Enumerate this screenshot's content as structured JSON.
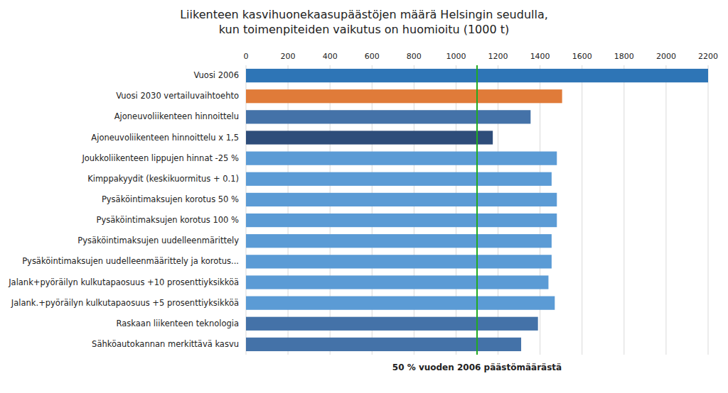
{
  "chart_data": {
    "type": "bar",
    "orientation": "horizontal",
    "title": "Liikenteen kasvihuonekaasupäästöjen määrä Helsingin seudulla,\nkun toimenpiteiden vaikutus on huomioitu (1000 t)",
    "categories": [
      "Vuosi 2006",
      "Vuosi 2030 vertailuvaihtoehto",
      "Ajoneuvoliikenteen hinnoittelu",
      "Ajoneuvoliikenteen hinnoittelu x 1,5",
      "Joukkoliikenteen lippujen hinnat -25 %",
      "Kimppakyydit (keskikuormitus + 0.1)",
      "Pysäköintimaksujen korotus 50 %",
      "Pysäköintimaksujen korotus 100 %",
      "Pysäköintimaksujen uudelleenmärittely",
      "Pysäköintimaksujen uudelleenmäärittely ja korotus...",
      "Jalank+pyöräilyn kulkutapaosuus +10 prosenttiyksikköä",
      "Jalank.+pyöräilyn kulkutapaosuus +5 prosenttiyksikköä",
      "Raskaan liikenteen teknologia",
      "Sähköautokannan merkittävä kasvu"
    ],
    "values": [
      2200,
      1505,
      1355,
      1175,
      1480,
      1455,
      1480,
      1480,
      1455,
      1455,
      1440,
      1470,
      1390,
      1310
    ],
    "colors": [
      "#2e75b6",
      "#e07b39",
      "#4472a8",
      "#2e4d7a",
      "#5b9bd5",
      "#5b9bd5",
      "#5b9bd5",
      "#5b9bd5",
      "#5b9bd5",
      "#5b9bd5",
      "#5b9bd5",
      "#5b9bd5",
      "#4472a8",
      "#4472a8"
    ],
    "xlim": [
      0,
      2200
    ],
    "xticks": [
      0,
      200,
      400,
      600,
      800,
      1000,
      1200,
      1400,
      1600,
      1800,
      2000,
      2200
    ],
    "grid": true,
    "annotations": [
      {
        "type": "vline",
        "x": 1100,
        "label": "50 % vuoden 2006 päästömäärästä",
        "color": "#22aa22"
      }
    ]
  }
}
